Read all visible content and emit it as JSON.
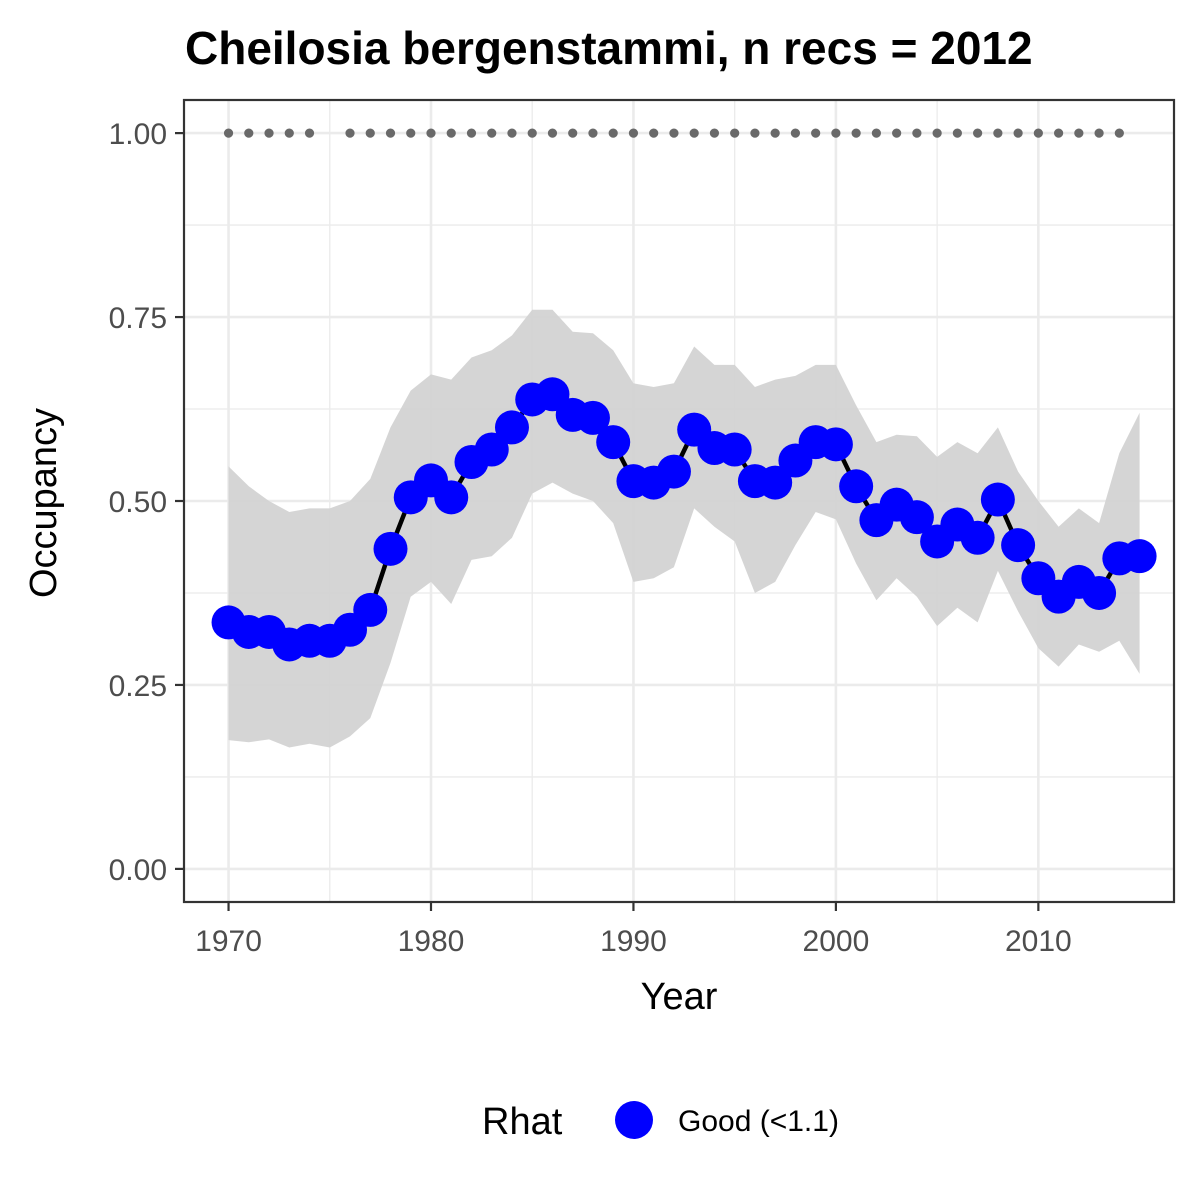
{
  "chart_data": {
    "type": "line",
    "title": "Cheilosia bergenstammi, n recs = 2012",
    "xlabel": "Year",
    "ylabel": "Occupancy",
    "xlim": [
      1967.8,
      2016.7
    ],
    "ylim": [
      -0.045,
      1.045
    ],
    "x_ticks": [
      1970,
      1980,
      1990,
      2000,
      2010
    ],
    "x_tick_labels": [
      "1970",
      "1980",
      "1990",
      "2000",
      "2010"
    ],
    "y_ticks": [
      0,
      0.25,
      0.5,
      0.75,
      1.0
    ],
    "y_tick_labels": [
      "0.00",
      "0.25",
      "0.50",
      "0.75",
      "1.00"
    ],
    "grid": true,
    "legend": {
      "title": "Rhat",
      "position": "bottom",
      "entries": [
        {
          "label": "Good (<1.1)",
          "color": "#0000ff"
        }
      ]
    },
    "colors": {
      "points": "#0000ff",
      "line": "#000000",
      "ribbon": "#d3d3d3",
      "record_dots": "#696969"
    },
    "series": [
      {
        "name": "Good (<1.1)",
        "x": [
          1970,
          1971,
          1972,
          1973,
          1974,
          1975,
          1976,
          1977,
          1978,
          1979,
          1980,
          1981,
          1982,
          1983,
          1984,
          1985,
          1986,
          1987,
          1988,
          1989,
          1990,
          1991,
          1992,
          1993,
          1994,
          1995,
          1996,
          1997,
          1998,
          1999,
          2000,
          2001,
          2002,
          2003,
          2004,
          2005,
          2006,
          2007,
          2008,
          2009,
          2010,
          2011,
          2012,
          2013,
          2014,
          2015
        ],
        "y": [
          0.335,
          0.322,
          0.322,
          0.305,
          0.31,
          0.31,
          0.325,
          0.352,
          0.435,
          0.505,
          0.528,
          0.505,
          0.553,
          0.57,
          0.6,
          0.638,
          0.645,
          0.617,
          0.613,
          0.58,
          0.527,
          0.525,
          0.54,
          0.597,
          0.572,
          0.57,
          0.527,
          0.525,
          0.555,
          0.58,
          0.577,
          0.52,
          0.474,
          0.495,
          0.478,
          0.445,
          0.468,
          0.45,
          0.502,
          0.44,
          0.395,
          0.37,
          0.39,
          0.375,
          0.422,
          0.425
        ]
      }
    ],
    "ribbon": {
      "x": [
        1970,
        1971,
        1972,
        1973,
        1974,
        1975,
        1976,
        1977,
        1978,
        1979,
        1980,
        1981,
        1982,
        1983,
        1984,
        1985,
        1986,
        1987,
        1988,
        1989,
        1990,
        1991,
        1992,
        1993,
        1994,
        1995,
        1996,
        1997,
        1998,
        1999,
        2000,
        2001,
        2002,
        2003,
        2004,
        2005,
        2006,
        2007,
        2008,
        2009,
        2010,
        2011,
        2012,
        2013,
        2014,
        2015
      ],
      "lower": [
        0.175,
        0.172,
        0.176,
        0.165,
        0.17,
        0.165,
        0.18,
        0.205,
        0.28,
        0.37,
        0.39,
        0.36,
        0.42,
        0.425,
        0.45,
        0.51,
        0.525,
        0.51,
        0.5,
        0.47,
        0.39,
        0.395,
        0.41,
        0.49,
        0.465,
        0.445,
        0.375,
        0.39,
        0.44,
        0.485,
        0.475,
        0.415,
        0.365,
        0.395,
        0.37,
        0.33,
        0.355,
        0.335,
        0.405,
        0.35,
        0.3,
        0.275,
        0.305,
        0.295,
        0.31,
        0.265
      ],
      "upper": [
        0.547,
        0.52,
        0.5,
        0.485,
        0.49,
        0.49,
        0.5,
        0.53,
        0.6,
        0.65,
        0.672,
        0.665,
        0.695,
        0.705,
        0.725,
        0.76,
        0.76,
        0.73,
        0.728,
        0.705,
        0.66,
        0.655,
        0.66,
        0.71,
        0.685,
        0.685,
        0.655,
        0.665,
        0.67,
        0.685,
        0.685,
        0.63,
        0.58,
        0.59,
        0.588,
        0.56,
        0.58,
        0.565,
        0.6,
        0.54,
        0.5,
        0.465,
        0.49,
        0.47,
        0.565,
        0.62
      ]
    },
    "record_years": [
      1970,
      1971,
      1972,
      1973,
      1974,
      1976,
      1977,
      1978,
      1979,
      1980,
      1981,
      1982,
      1983,
      1984,
      1985,
      1986,
      1987,
      1988,
      1989,
      1990,
      1991,
      1992,
      1993,
      1994,
      1995,
      1996,
      1997,
      1998,
      1999,
      2000,
      2001,
      2002,
      2003,
      2004,
      2005,
      2006,
      2007,
      2008,
      2009,
      2010,
      2011,
      2012,
      2013,
      2014
    ],
    "record_value": 1.0
  }
}
